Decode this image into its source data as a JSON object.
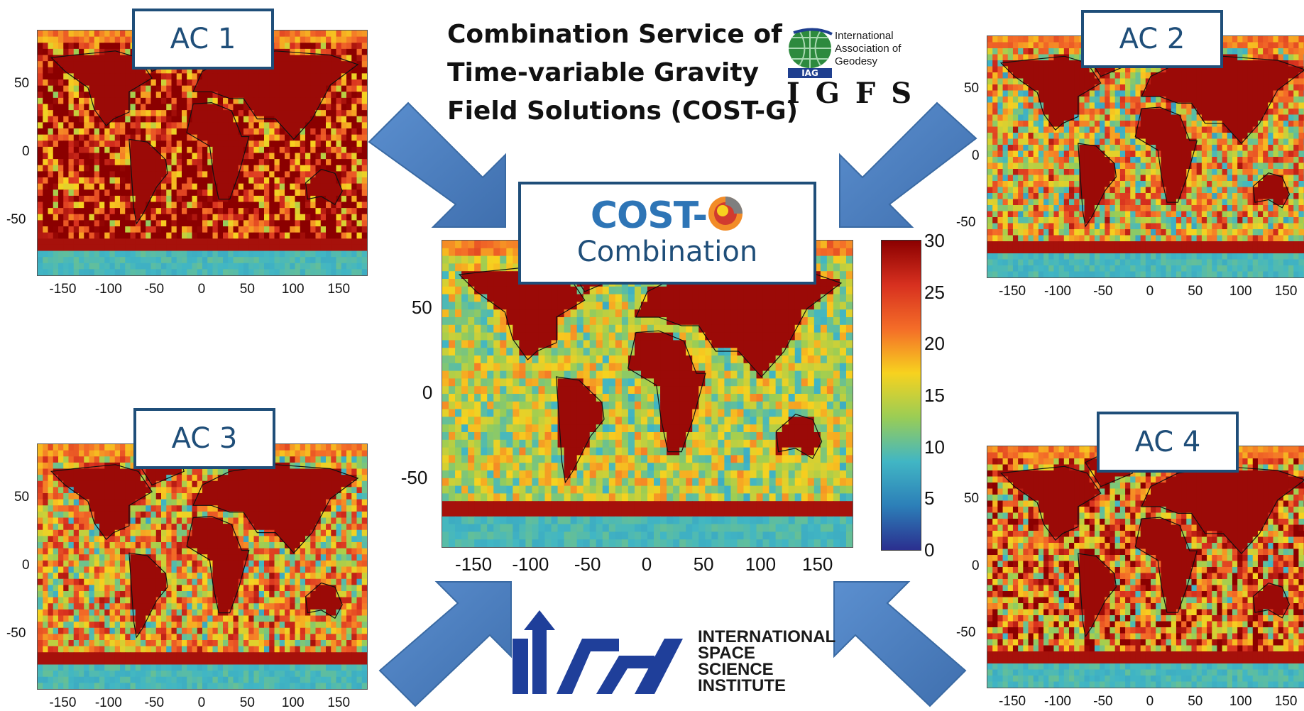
{
  "title": {
    "line1": "Combination Service of",
    "line2": "Time-variable Gravity",
    "line3": "Field Solutions (COST-G)"
  },
  "iag_logo": {
    "line1": "International",
    "line2": "Association of",
    "line3": "Geodesy",
    "badge": "IAG",
    "acronym": "IGFS"
  },
  "center": {
    "logo_text": "COST-",
    "subtitle": "Combination"
  },
  "panels": [
    {
      "label": "AC 1"
    },
    {
      "label": "AC 2"
    },
    {
      "label": "AC 3"
    },
    {
      "label": "AC 4"
    }
  ],
  "x_ticks": [
    "-150",
    "-100",
    "-50",
    "0",
    "50",
    "100",
    "150"
  ],
  "y_ticks": [
    "50",
    "0",
    "-50"
  ],
  "colorbar": {
    "ticks": [
      "30",
      "25",
      "20",
      "15",
      "10",
      "5",
      "0"
    ],
    "colors": [
      "#8b0000",
      "#d7301f",
      "#f46d28",
      "#f7d21f",
      "#9acd55",
      "#41b6c4",
      "#2c7fb8",
      "#2b2f8f"
    ]
  },
  "issi": {
    "line1": "INTERNATIONAL",
    "line2": "SPACE",
    "line3": "SCIENCE",
    "line4": "INSTITUTE"
  },
  "colors": {
    "arrow": "#4f81bd",
    "box_border": "#1f4e79",
    "cost_blue": "#2e75b6"
  }
}
